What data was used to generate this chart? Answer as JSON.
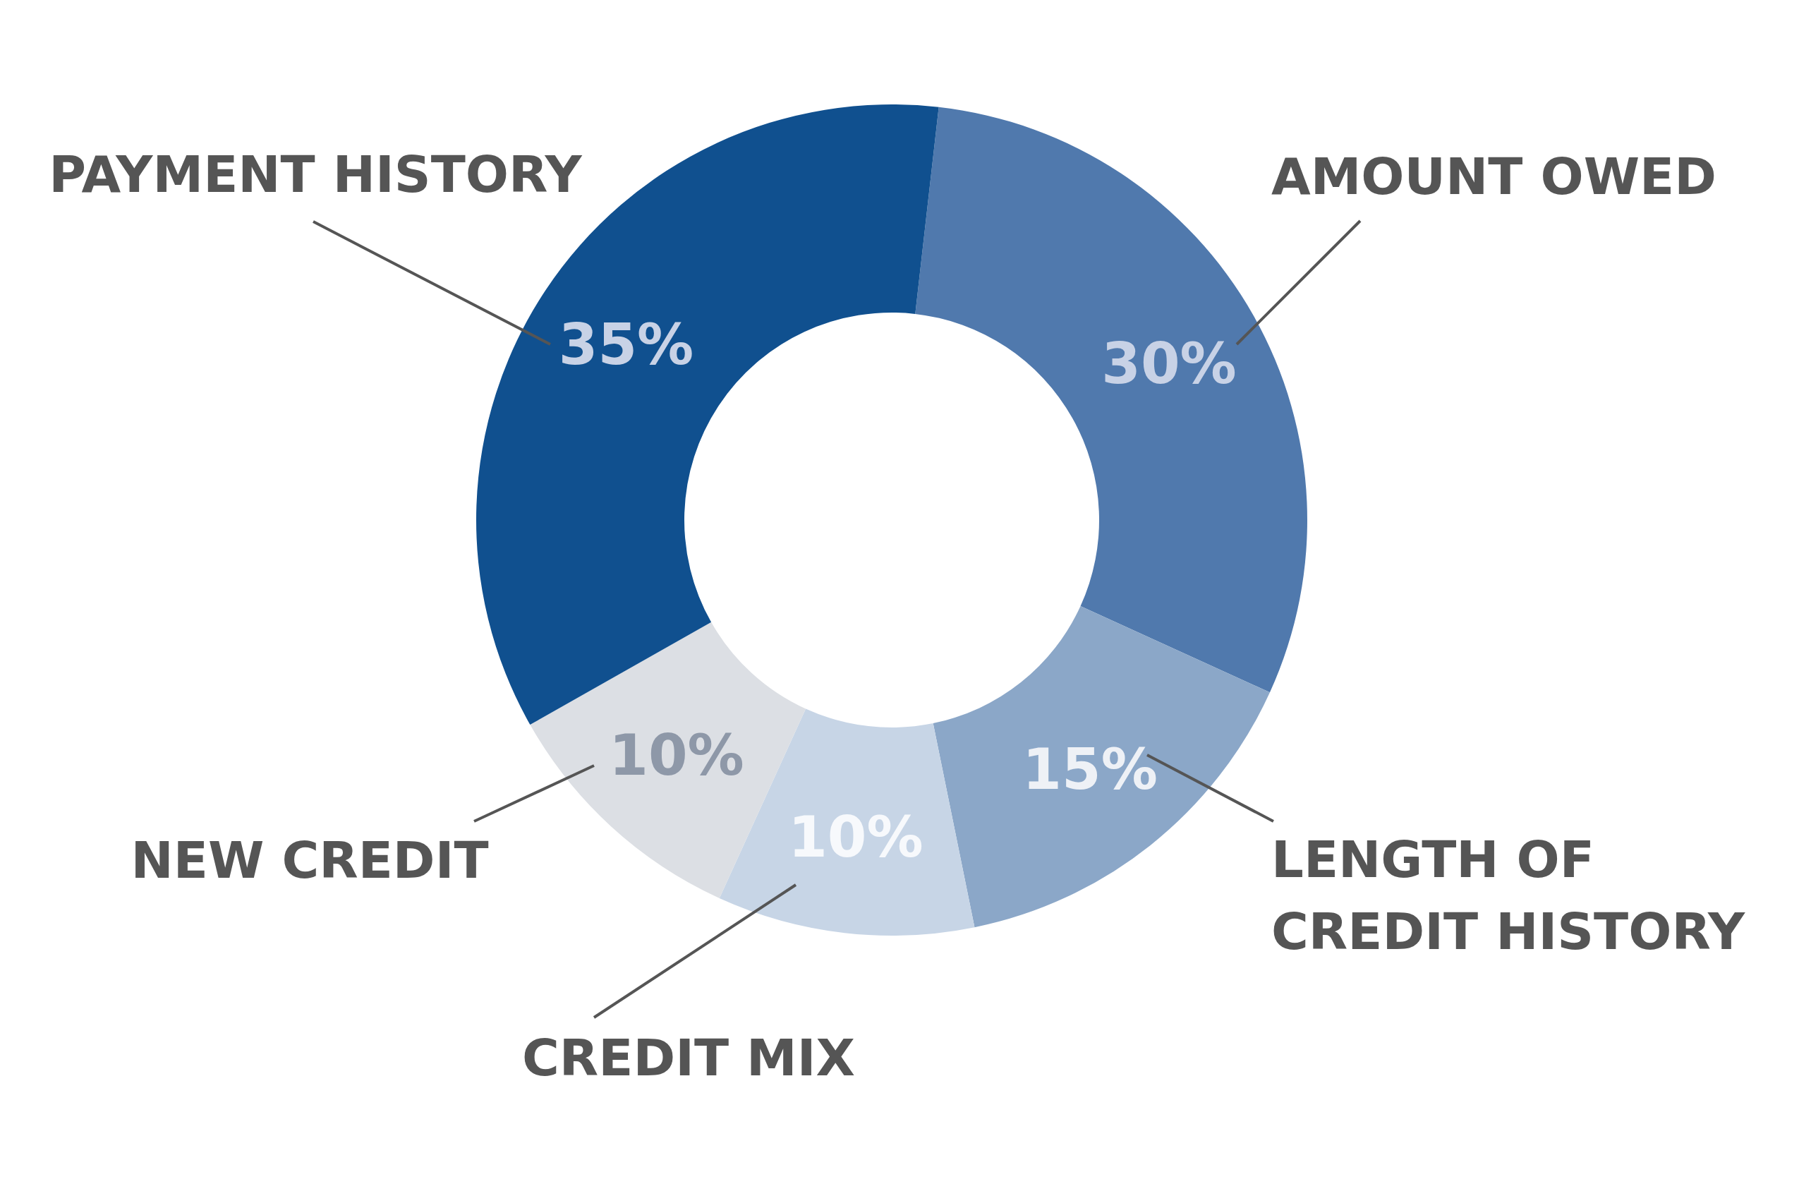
{
  "chart_data": {
    "type": "donut",
    "categories": [
      "AMOUNT OWED",
      "LENGTH OF CREDIT HISTORY",
      "CREDIT MIX",
      "NEW CREDIT",
      "PAYMENT HISTORY"
    ],
    "values": [
      30,
      15,
      10,
      10,
      35
    ],
    "colors": [
      "#5079ad",
      "#8ba7c8",
      "#c7d5e6",
      "#dcdfe4",
      "#10508f"
    ],
    "value_labels": [
      "30%",
      "15%",
      "10%",
      "10%",
      "35%"
    ]
  }
}
